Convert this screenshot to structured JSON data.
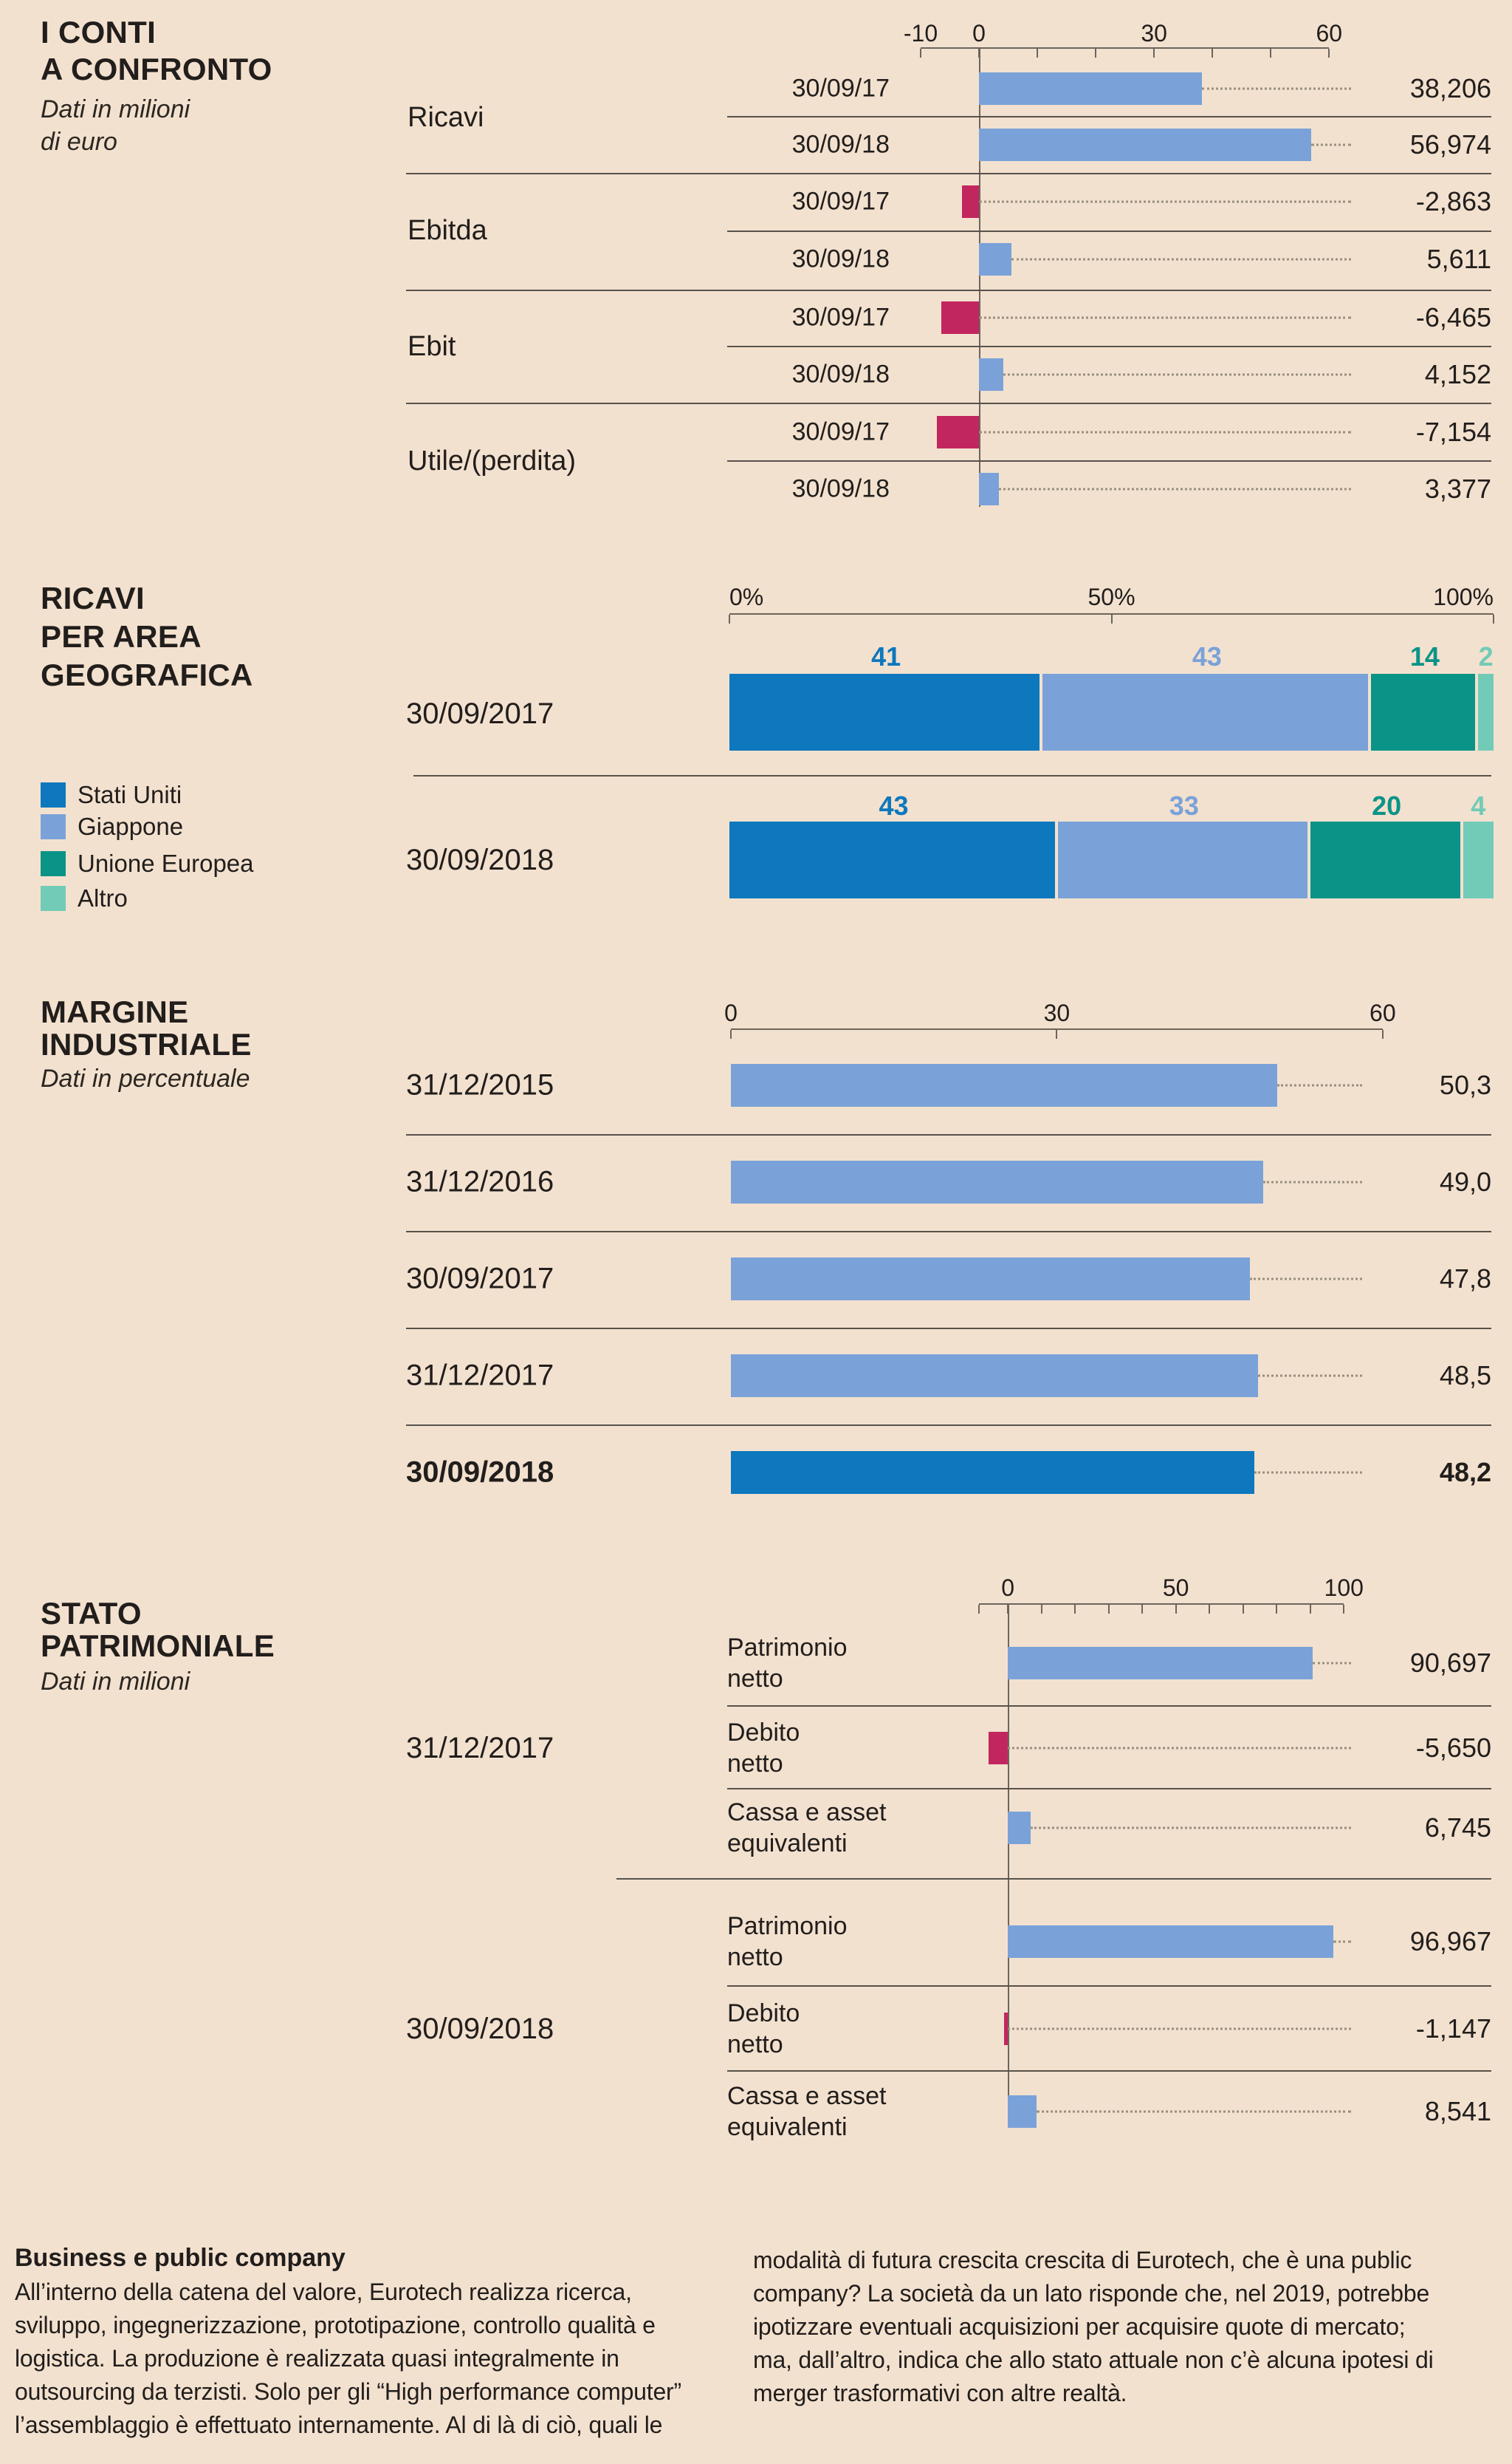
{
  "colors": {
    "background": "#f3e1cf",
    "blue": "#7aa2d8",
    "blue_dark": "#0d78bd",
    "magenta": "#c2265f",
    "teal": "#0a9487",
    "teal_light": "#72cbb7",
    "text": "#211e1c",
    "line": "#57524b",
    "axisline": "#6b655c",
    "leader": "#99907f"
  },
  "chart_data": [
    {
      "type": "bar",
      "orientation": "horizontal",
      "title": "I CONTI A CONFRONTO",
      "title_lines": [
        "I CONTI",
        "A CONFRONTO"
      ],
      "subtitle": "Dati in milioni di euro",
      "subtitle_lines": [
        "Dati in milioni",
        "di euro"
      ],
      "axis": {
        "min": -10,
        "max": 60,
        "minor_step": 10,
        "tick_labels": [
          {
            "u": -10,
            "text": "-10"
          },
          {
            "u": 0,
            "text": "0"
          },
          {
            "u": 30,
            "text": "30"
          },
          {
            "u": 60,
            "text": "60"
          }
        ]
      },
      "positive_color": "#7aa2d8",
      "negative_color": "#c2265f",
      "groups": [
        {
          "label": "Ricavi",
          "rows": [
            {
              "category": "30/09/17",
              "value": 38.206,
              "label": "38,206"
            },
            {
              "category": "30/09/18",
              "value": 56.974,
              "label": "56,974"
            }
          ]
        },
        {
          "label": "Ebitda",
          "rows": [
            {
              "category": "30/09/17",
              "value": -2.863,
              "label": "-2,863"
            },
            {
              "category": "30/09/18",
              "value": 5.611,
              "label": "5,611"
            }
          ]
        },
        {
          "label": "Ebit",
          "rows": [
            {
              "category": "30/09/17",
              "value": -6.465,
              "label": "-6,465"
            },
            {
              "category": "30/09/18",
              "value": 4.152,
              "label": "4,152"
            }
          ]
        },
        {
          "label": "Utile/(perdita)",
          "rows": [
            {
              "category": "30/09/17",
              "value": -7.154,
              "label": "-7,154"
            },
            {
              "category": "30/09/18",
              "value": 3.377,
              "label": "3,377"
            }
          ]
        }
      ]
    },
    {
      "type": "stacked-bar",
      "orientation": "horizontal",
      "title": "RICAVI PER AREA GEOGRAFICA",
      "title_lines": [
        "RICAVI",
        "PER AREA",
        "GEOGRAFICA"
      ],
      "axis": {
        "min": 0,
        "max": 100,
        "tick_labels": [
          {
            "u": 0,
            "text": "0%"
          },
          {
            "u": 50,
            "text": "50%"
          },
          {
            "u": 100,
            "text": "100%"
          }
        ]
      },
      "legend": [
        {
          "label": "Stati Uniti",
          "color": "#0d78bd"
        },
        {
          "label": "Giappone",
          "color": "#7aa2d8"
        },
        {
          "label": "Unione Europea",
          "color": "#0a9487"
        },
        {
          "label": "Altro",
          "color": "#72cbb7"
        }
      ],
      "bars": [
        {
          "category": "30/09/2017",
          "segments": [
            {
              "series": "Stati Uniti",
              "value": 41,
              "label": "41"
            },
            {
              "series": "Giappone",
              "value": 43,
              "label": "43"
            },
            {
              "series": "Unione Europea",
              "value": 14,
              "label": "14"
            },
            {
              "series": "Altro",
              "value": 2,
              "label": "2"
            }
          ]
        },
        {
          "category": "30/09/2018",
          "segments": [
            {
              "series": "Stati Uniti",
              "value": 43,
              "label": "43"
            },
            {
              "series": "Giappone",
              "value": 33,
              "label": "33"
            },
            {
              "series": "Unione Europea",
              "value": 20,
              "label": "20"
            },
            {
              "series": "Altro",
              "value": 4,
              "label": "4"
            }
          ]
        }
      ]
    },
    {
      "type": "bar",
      "orientation": "horizontal",
      "title": "MARGINE INDUSTRIALE",
      "title_lines": [
        "MARGINE",
        "INDUSTRIALE"
      ],
      "subtitle": "Dati in percentuale",
      "axis": {
        "min": 0,
        "max": 60,
        "tick_labels": [
          {
            "u": 0,
            "text": "0"
          },
          {
            "u": 30,
            "text": "30"
          },
          {
            "u": 60,
            "text": "60"
          }
        ]
      },
      "bar_color": "#7aa2d8",
      "highlight_color": "#0d78bd",
      "rows": [
        {
          "category": "31/12/2015",
          "value": 50.3,
          "label": "50,3",
          "highlight": false
        },
        {
          "category": "31/12/2016",
          "value": 49.0,
          "label": "49,0",
          "highlight": false
        },
        {
          "category": "30/09/2017",
          "value": 47.8,
          "label": "47,8",
          "highlight": false
        },
        {
          "category": "31/12/2017",
          "value": 48.5,
          "label": "48,5",
          "highlight": false
        },
        {
          "category": "30/09/2018",
          "value": 48.2,
          "label": "48,2",
          "highlight": true
        }
      ]
    },
    {
      "type": "bar",
      "orientation": "horizontal",
      "title": "STATO PATRIMONIALE",
      "title_lines": [
        "STATO",
        "PATRIMONIALE"
      ],
      "subtitle": "Dati in milioni",
      "axis": {
        "min": 0,
        "max": 100,
        "minor_step": 10,
        "tick_labels": [
          {
            "u": 0,
            "text": "0"
          },
          {
            "u": 50,
            "text": "50"
          },
          {
            "u": 100,
            "text": "100"
          }
        ]
      },
      "positive_color": "#7aa2d8",
      "negative_color": "#c2265f",
      "groups": [
        {
          "label": "31/12/2017",
          "rows": [
            {
              "category": "Patrimonio netto",
              "category_lines": [
                "Patrimonio",
                "netto"
              ],
              "value": 90.697,
              "label": "90,697"
            },
            {
              "category": "Debito netto",
              "category_lines": [
                "Debito",
                "netto"
              ],
              "value": -5.65,
              "label": "-5,650"
            },
            {
              "category": "Cassa e asset equivalenti",
              "category_lines": [
                "Cassa e asset",
                "equivalenti"
              ],
              "value": 6.745,
              "label": "6,745"
            }
          ]
        },
        {
          "label": "30/09/2018",
          "rows": [
            {
              "category": "Patrimonio netto",
              "category_lines": [
                "Patrimonio",
                "netto"
              ],
              "value": 96.967,
              "label": "96,967"
            },
            {
              "category": "Debito netto",
              "category_lines": [
                "Debito",
                "netto"
              ],
              "value": -1.147,
              "label": "-1,147"
            },
            {
              "category": "Cassa e asset equivalenti",
              "category_lines": [
                "Cassa e asset",
                "equivalenti"
              ],
              "value": 8.541,
              "label": "8,541"
            }
          ]
        }
      ]
    }
  ],
  "footer": {
    "heading": "Business e public company",
    "left_lines": [
      "All’interno della catena del valore, Eurotech realizza ricerca,",
      "sviluppo, ingegnerizzazione, prototipazione, controllo qualità e",
      "logistica. La produzione è realizzata quasi integralmente in",
      "outsourcing da terzisti. Solo per gli “High performance computer”",
      "l’assemblaggio è effettuato internamente. Al di là di ciò, quali le"
    ],
    "right_lines": [
      "modalità di futura crescita crescita di Eurotech, che è una public",
      "company? La società da un lato risponde che, nel 2019, potrebbe",
      "ipotizzare eventuali acquisizioni per acquisire quote di mercato;",
      "ma, dall’altro, indica che allo stato attuale non c’è alcuna ipotesi di",
      "merger trasformativi con altre realtà."
    ]
  }
}
